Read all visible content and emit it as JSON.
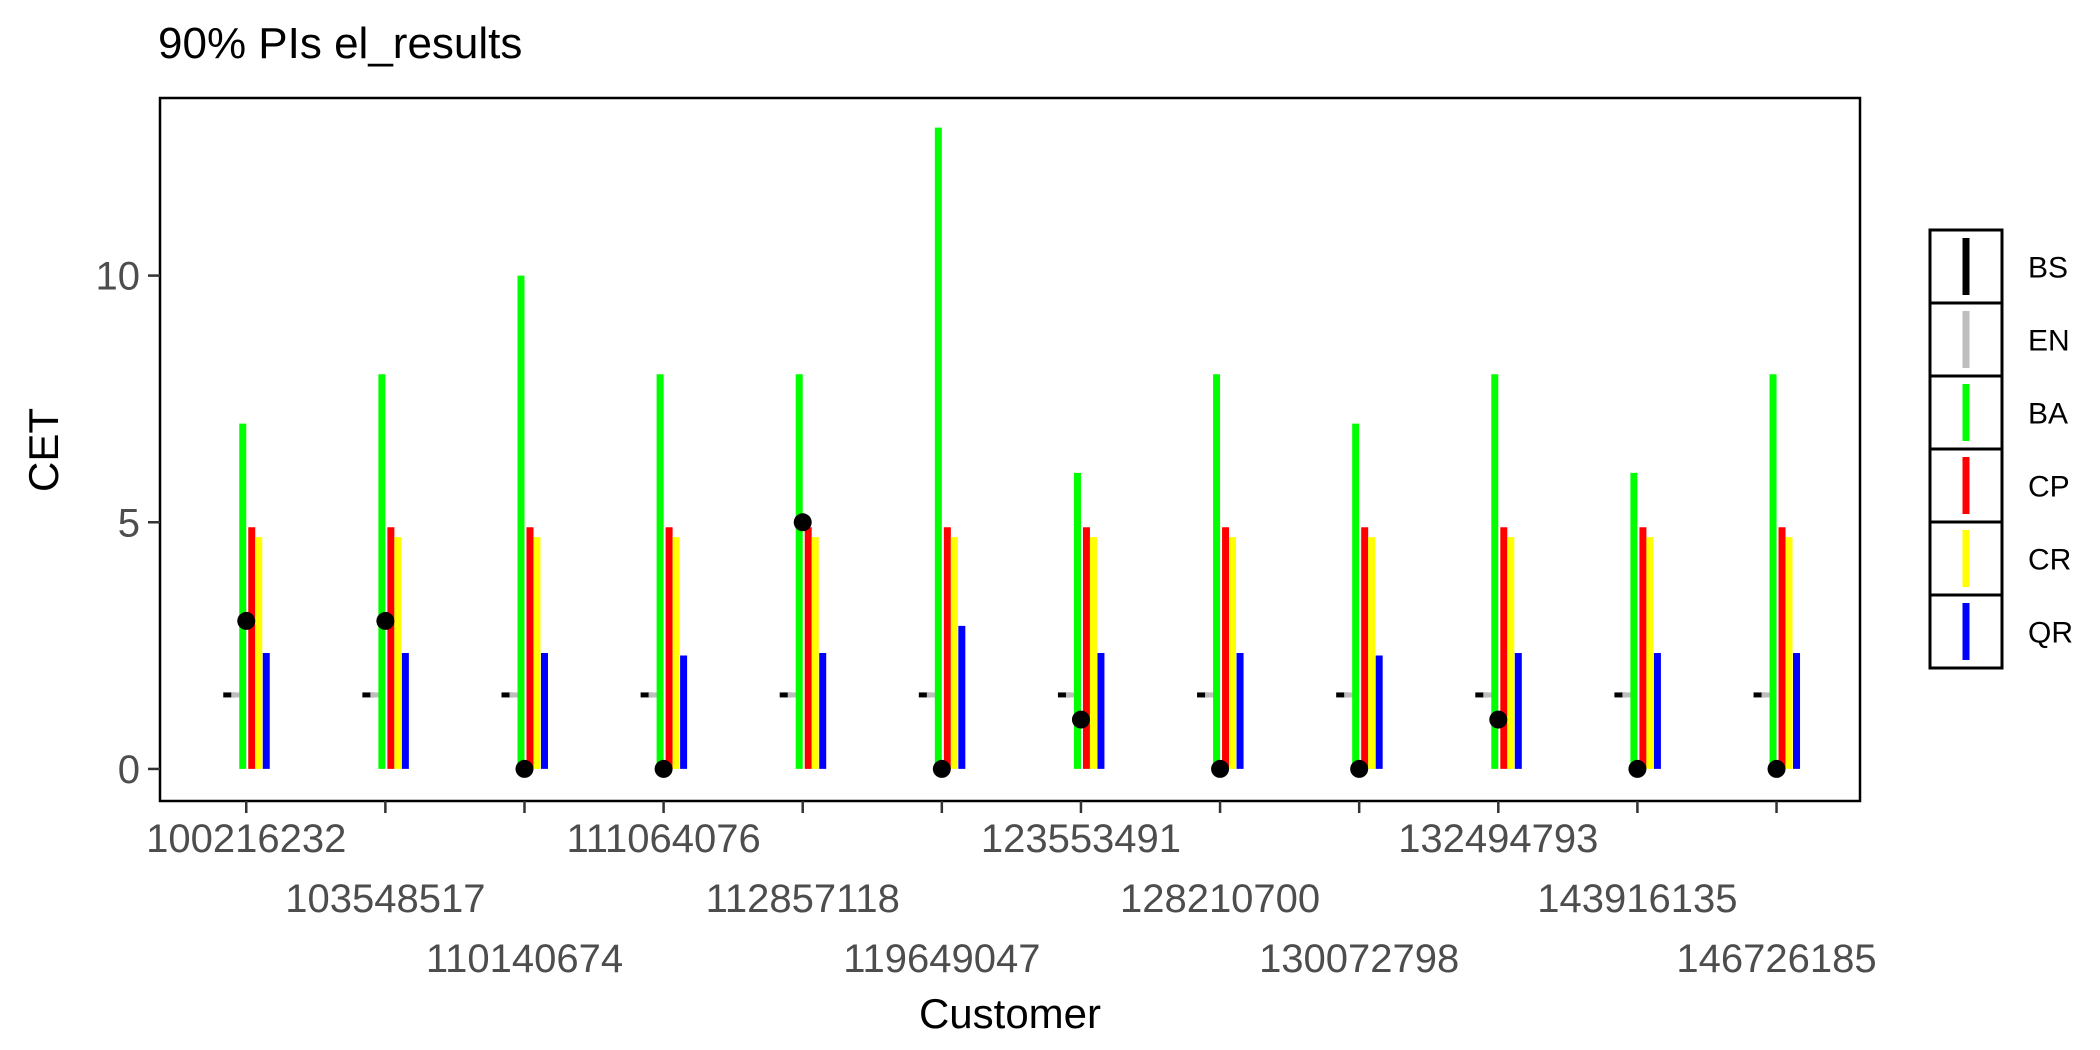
{
  "chart_data": {
    "type": "bar",
    "title": "90% PIs el_results",
    "xlabel": "Customer",
    "ylabel": "CET",
    "ylim": [
      -0.65,
      13.6
    ],
    "yticks": [
      0,
      5,
      10
    ],
    "grid": false,
    "legend_position": "right",
    "categories": [
      "100216232",
      "103548517",
      "110140674",
      "111064076",
      "112857118",
      "119649047",
      "123553491",
      "128210700",
      "130072798",
      "132494793",
      "143916135",
      "146726185"
    ],
    "series": [
      {
        "name": "BS",
        "color": "#000000",
        "lower": [
          1.5,
          1.5,
          1.5,
          1.5,
          1.5,
          1.5,
          1.5,
          1.5,
          1.5,
          1.5,
          1.5,
          1.5
        ],
        "upper": [
          1.5,
          1.5,
          1.5,
          1.5,
          1.5,
          1.5,
          1.5,
          1.5,
          1.5,
          1.5,
          1.5,
          1.5
        ]
      },
      {
        "name": "EN",
        "color": "#bebebe",
        "lower": [
          1.5,
          1.5,
          1.5,
          1.5,
          1.5,
          1.5,
          1.5,
          1.5,
          1.5,
          1.5,
          1.5,
          1.5
        ],
        "upper": [
          1.5,
          1.5,
          1.5,
          1.5,
          1.5,
          1.5,
          1.5,
          1.5,
          1.5,
          1.5,
          1.5,
          1.5
        ]
      },
      {
        "name": "BA",
        "color": "#00ff00",
        "lower": [
          0,
          0,
          0,
          0,
          0,
          0,
          0,
          0,
          0,
          0,
          0,
          0
        ],
        "upper": [
          7,
          8,
          10,
          8,
          8,
          13,
          6,
          8,
          7,
          8,
          6,
          8
        ]
      },
      {
        "name": "CP",
        "color": "#ff0000",
        "lower": [
          0,
          0,
          0,
          0,
          0,
          0,
          0,
          0,
          0,
          0,
          0,
          0
        ],
        "upper": [
          4.9,
          4.9,
          4.9,
          4.9,
          4.9,
          4.9,
          4.9,
          4.9,
          4.9,
          4.9,
          4.9,
          4.9
        ]
      },
      {
        "name": "CR",
        "color": "#ffff00",
        "lower": [
          0,
          0,
          0,
          0,
          0,
          0,
          0,
          0,
          0,
          0,
          0,
          0
        ],
        "upper": [
          4.7,
          4.7,
          4.7,
          4.7,
          4.7,
          4.7,
          4.7,
          4.7,
          4.7,
          4.7,
          4.7,
          4.7
        ]
      },
      {
        "name": "QR",
        "color": "#0000ff",
        "lower": [
          0,
          0,
          0,
          0,
          0,
          0,
          0,
          0,
          0,
          0,
          0,
          0
        ],
        "upper": [
          2.35,
          2.35,
          2.35,
          2.3,
          2.35,
          2.9,
          2.35,
          2.35,
          2.3,
          2.35,
          2.35,
          2.35
        ]
      }
    ],
    "actual": [
      3,
      3,
      0,
      0,
      5,
      0,
      1,
      0,
      0,
      1,
      0,
      0
    ]
  }
}
